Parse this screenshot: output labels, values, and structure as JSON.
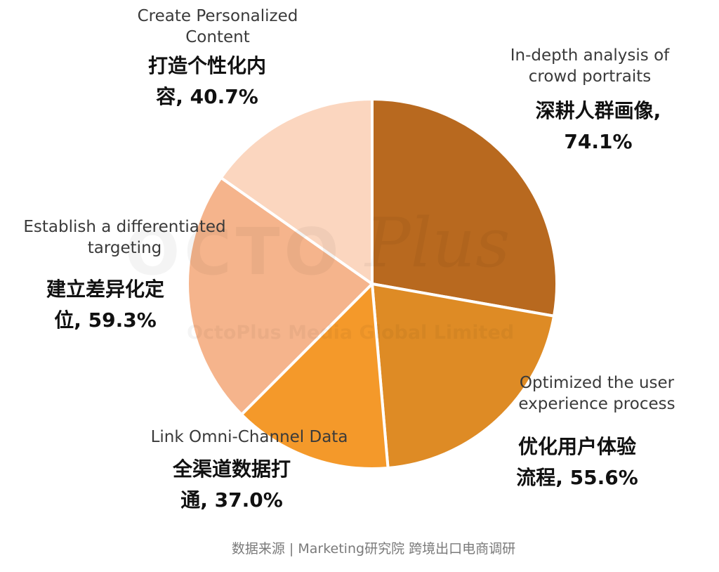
{
  "chart_data": {
    "type": "pie",
    "title": "",
    "slices": [
      {
        "label_en": "In-depth analysis of\ncrowd portraits",
        "label_zh": "深耕人群画像,\n74.1%",
        "value": 74.1,
        "color": "#b8691f"
      },
      {
        "label_en": "Optimized the user\nexperience process",
        "label_zh": "优化用户体验\n流程, 55.6%",
        "value": 55.6,
        "color": "#de8b25"
      },
      {
        "label_en": "Link Omni-Channel Data",
        "label_zh": "全渠道数据打\n通, 37.0%",
        "value": 37.0,
        "color": "#f4992a"
      },
      {
        "label_en": "Establish a differentiated\ntargeting",
        "label_zh": "建立差异化定\n位, 59.3%",
        "value": 59.3,
        "color": "#f5b48c"
      },
      {
        "label_en": "Create Personalized\nContent",
        "label_zh": "打造个性化内\n容, 40.7%",
        "value": 40.7,
        "color": "#fbd6bf"
      }
    ]
  },
  "source": "数据来源 | Marketing研究院 跨境出口电商调研",
  "watermark": {
    "brand": "OCTO",
    "script": "Plus",
    "company": "OctoPlus Media Global Limited"
  }
}
